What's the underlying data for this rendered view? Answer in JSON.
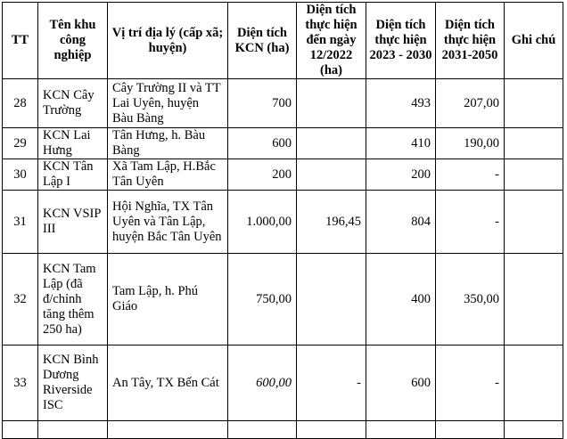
{
  "headers": {
    "tt": "TT",
    "name": "Tên khu công nghiệp",
    "location": "Vị trí địa lý (cấp xã; huyện)",
    "area": "Diện tích KCN (ha)",
    "done_2022": "Diện tích thực hiện đến ngày 12/2022 (ha)",
    "plan_2023_2030": "Diện tích thực hiện 2023 - 2030",
    "plan_2031_2050": "Diện tích thực hiện 2031-2050",
    "note": "Ghi chú"
  },
  "rows": [
    {
      "tt": "28",
      "name": "KCN Cây Trường",
      "location": "Cây Trường II và TT Lai Uyên, huyện Bàu Bàng",
      "area": "700",
      "done_2022": "",
      "plan_2023_2030": "493",
      "plan_2031_2050": "207,00",
      "note": ""
    },
    {
      "tt": "29",
      "name": "KCN Lai Hưng",
      "location": "Tân Hưng, h. Bàu Bàng",
      "area": "600",
      "done_2022": "",
      "plan_2023_2030": "410",
      "plan_2031_2050": "190,00",
      "note": ""
    },
    {
      "tt": "30",
      "name": "KCN Tân Lập I",
      "location": "Xã Tam Lập, H.Bắc Tân Uyên",
      "area": "200",
      "done_2022": "",
      "plan_2023_2030": "200",
      "plan_2031_2050": "-",
      "note": ""
    },
    {
      "tt": "31",
      "name": "KCN VSIP III",
      "location": "Hội Nghĩa, TX Tân Uyên và Tân Lập, huyện Bắc Tân Uyên",
      "area": "1.000,00",
      "done_2022": "196,45",
      "plan_2023_2030": "804",
      "plan_2031_2050": "-",
      "note": ""
    },
    {
      "tt": "32",
      "name": "KCN Tam Lập (đã đ/chỉnh tăng thêm 250 ha)",
      "location": "Tam Lập, h. Phú Giáo",
      "area": "750,00",
      "done_2022": "",
      "plan_2023_2030": "400",
      "plan_2031_2050": "350,00",
      "note": ""
    },
    {
      "tt": "33",
      "name": "KCN Bình Dương Riverside ISC",
      "location": "An Tây, TX Bến Cát",
      "area": "600,00",
      "done_2022": "-",
      "plan_2023_2030": "600",
      "plan_2031_2050": "-",
      "note": ""
    }
  ]
}
